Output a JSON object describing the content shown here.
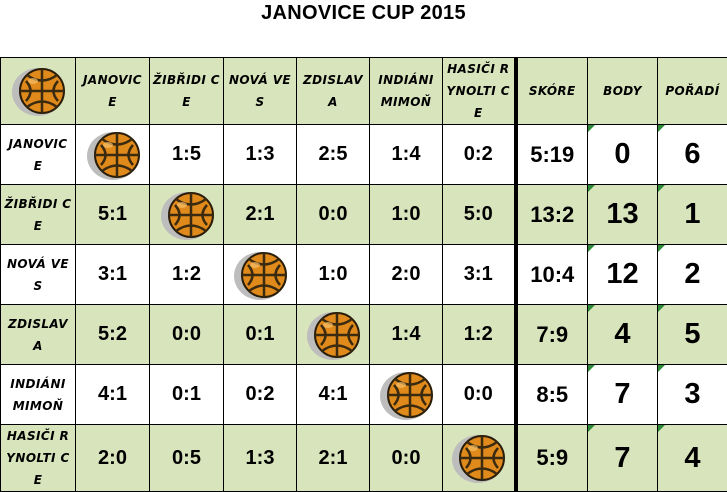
{
  "title": "JANOVICE CUP 2015",
  "columns": [
    "JANOVIC E",
    "ŽIBŘIDI CE",
    "NOVÁ VES",
    "ZDISLAV A",
    "INDIÁNI MIMOŇ",
    "HASIČI RYNOLTI CE"
  ],
  "stats_headers": {
    "score": "SKÓRE",
    "points": "BODY",
    "rank": "POŘADÍ"
  },
  "rows": [
    {
      "team": "JANOVIC E",
      "results": [
        "",
        "1:5",
        "1:3",
        "2:5",
        "1:4",
        "0:2"
      ],
      "score": "5:19",
      "points": "0",
      "rank": "6"
    },
    {
      "team": "ŽIBŘIDI CE",
      "results": [
        "5:1",
        "",
        "2:1",
        "0:0",
        "1:0",
        "5:0"
      ],
      "score": "13:2",
      "points": "13",
      "rank": "1"
    },
    {
      "team": "NOVÁ VES",
      "results": [
        "3:1",
        "1:2",
        "",
        "1:0",
        "2:0",
        "3:1"
      ],
      "score": "10:4",
      "points": "12",
      "rank": "2"
    },
    {
      "team": "ZDISLAV A",
      "results": [
        "5:2",
        "0:0",
        "0:1",
        "",
        "1:4",
        "1:2"
      ],
      "score": "7:9",
      "points": "4",
      "rank": "5"
    },
    {
      "team": "INDIÁNI MIMOŇ",
      "results": [
        "4:1",
        "0:1",
        "0:2",
        "4:1",
        "",
        "0:0"
      ],
      "score": "8:5",
      "points": "7",
      "rank": "3"
    },
    {
      "team": "HASIČI RYNOLTI CE",
      "results": [
        "2:0",
        "0:5",
        "1:3",
        "2:1",
        "0:0",
        ""
      ],
      "score": "5:9",
      "points": "7",
      "rank": "4"
    }
  ],
  "icons": {
    "corner": "handball-icon",
    "diagonal": "handball-icon"
  },
  "colors": {
    "green_fill": "#d8e4bc",
    "ball_orange": "#e08a1c",
    "ball_dark": "#3a2a10",
    "tick_green": "#2e8b3a"
  }
}
